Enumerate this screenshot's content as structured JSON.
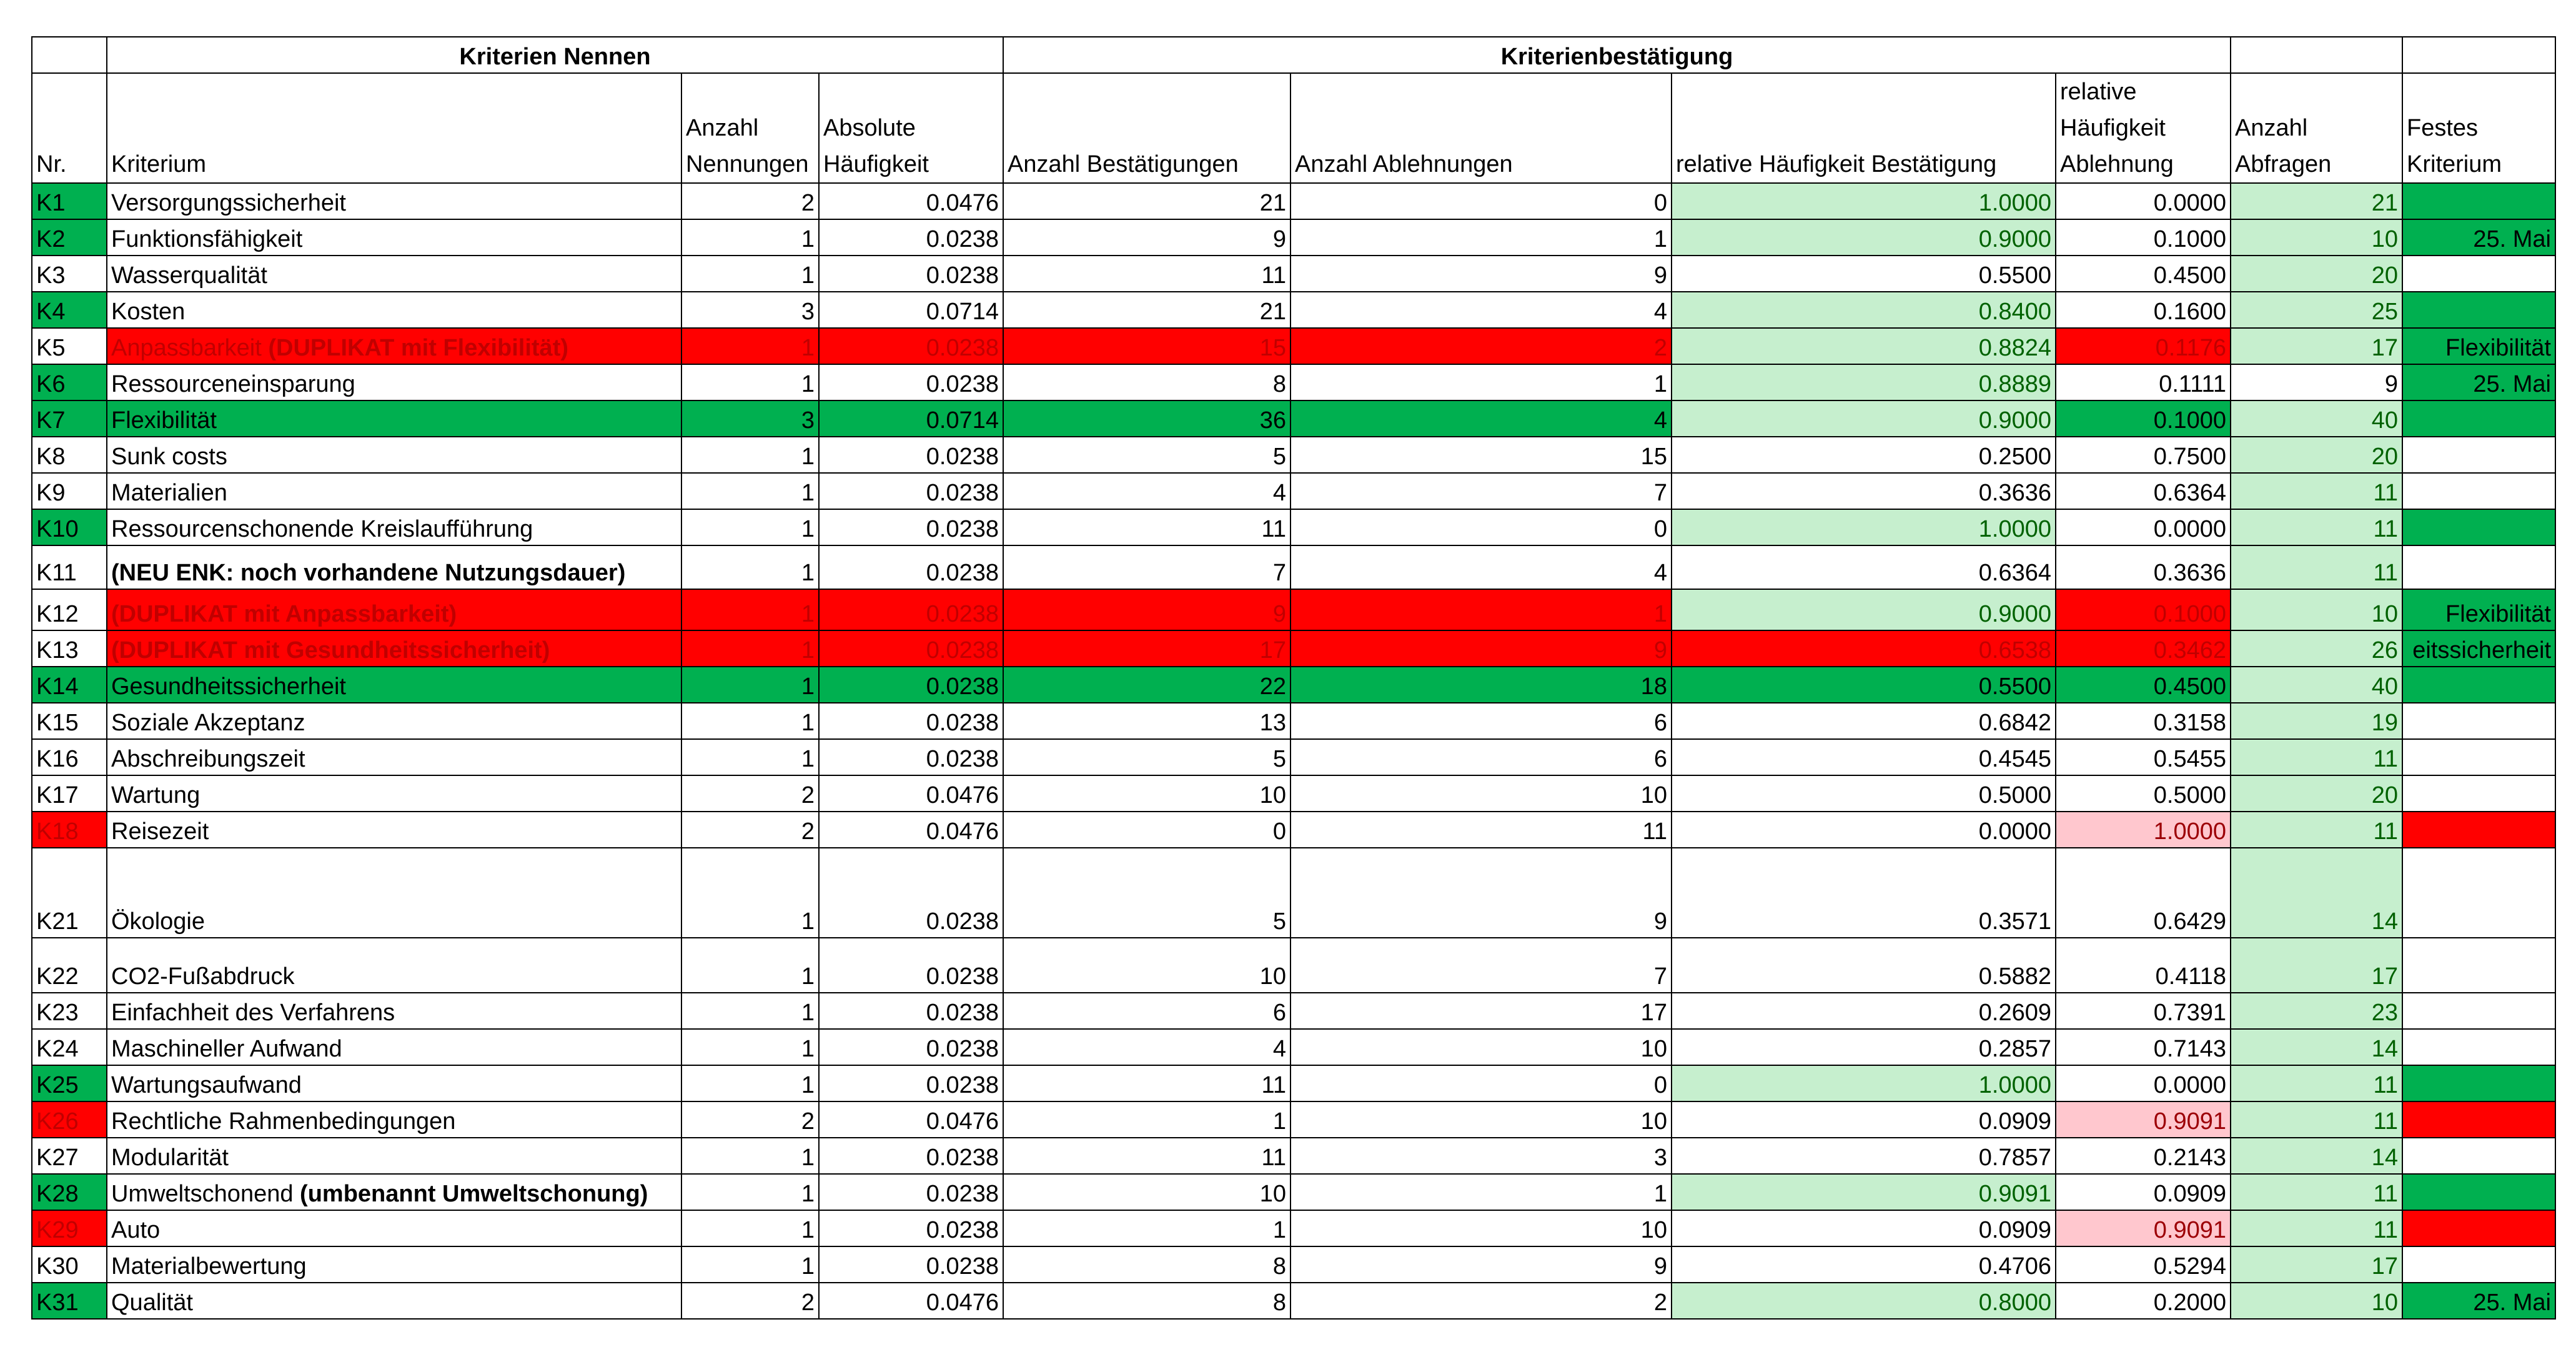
{
  "colors": {
    "green_fill": "#00b050",
    "light_green_fill": "#c6efce",
    "red_fill": "#ff0000",
    "pink_fill": "#ffc7ce",
    "dark_green_text": "#006100",
    "dark_red_text": "#9c0006"
  },
  "group_headers": {
    "nennen": "Kriterien Nennen",
    "bestaetigung": "Kriterienbestätigung"
  },
  "columns": [
    "Nr.",
    "Kriterium",
    "Anzahl Nennungen",
    "Absolute Häufigkeit",
    "Anzahl Bestätigungen",
    "Anzahl Ablehnungen",
    "relative Häufigkeit Bestätigung",
    "relative Häufigkeit Ablehnung",
    "Anzahl Abfragen",
    "Festes Kriterium"
  ],
  "rows": [
    {
      "nr": "K1",
      "name": "Versorgungssicherheit",
      "suffix": "",
      "nennungen": "2",
      "abs": "0.0476",
      "best": "21",
      "abl": "0",
      "rel_best": "1.0000",
      "rel_abl": "0.0000",
      "abfragen": "21",
      "fest": "",
      "fmt": {
        "nr": "g",
        "rel_best": "lg",
        "abfragen": "lg",
        "fest": "g"
      }
    },
    {
      "nr": "K2",
      "name": "Funktionsfähigkeit",
      "suffix": "",
      "nennungen": "1",
      "abs": "0.0238",
      "best": "9",
      "abl": "1",
      "rel_best": "0.9000",
      "rel_abl": "0.1000",
      "abfragen": "10",
      "fest": "25. Mai",
      "fmt": {
        "nr": "g",
        "rel_best": "lg",
        "abfragen": "lg",
        "fest": "g"
      }
    },
    {
      "nr": "K3",
      "name": "Wasserqualität",
      "suffix": "",
      "nennungen": "1",
      "abs": "0.0238",
      "best": "11",
      "abl": "9",
      "rel_best": "0.5500",
      "rel_abl": "0.4500",
      "abfragen": "20",
      "fest": "",
      "fmt": {
        "abfragen": "lg"
      }
    },
    {
      "nr": "K4",
      "name": "Kosten",
      "suffix": "",
      "nennungen": "3",
      "abs": "0.0714",
      "best": "21",
      "abl": "4",
      "rel_best": "0.8400",
      "rel_abl": "0.1600",
      "abfragen": "25",
      "fest": "",
      "fmt": {
        "nr": "g",
        "rel_best": "lg",
        "abfragen": "lg",
        "fest": "g"
      }
    },
    {
      "nr": "K5",
      "name": "Anpassbarkeit ",
      "suffix": "(DUPLIKAT mit Flexibilität)",
      "nennungen": "1",
      "abs": "0.0238",
      "best": "15",
      "abl": "2",
      "rel_best": "0.8824",
      "rel_abl": "0.1176",
      "abfragen": "17",
      "fest": "Flexibilität",
      "fmt": {
        "name": "r",
        "nennungen": "r",
        "abs": "r",
        "best": "r",
        "abl": "r",
        "rel_best": "lg",
        "rel_abl": "r",
        "abfragen": "lg",
        "fest": "g"
      }
    },
    {
      "nr": "K6",
      "name": "Ressourceneinsparung",
      "suffix": "",
      "nennungen": "1",
      "abs": "0.0238",
      "best": "8",
      "abl": "1",
      "rel_best": "0.8889",
      "rel_abl": "0.1111",
      "abfragen": "9",
      "fest": "25. Mai",
      "fmt": {
        "nr": "g",
        "rel_best": "lg",
        "fest": "g"
      }
    },
    {
      "nr": "K7",
      "name": "Flexibilität",
      "suffix": "",
      "nennungen": "3",
      "abs": "0.0714",
      "best": "36",
      "abl": "4",
      "rel_best": "0.9000",
      "rel_abl": "0.1000",
      "abfragen": "40",
      "fest": "",
      "fmt": {
        "nr": "g",
        "name": "g",
        "nennungen": "g",
        "abs": "g",
        "best": "g",
        "abl": "g",
        "rel_best": "lg",
        "rel_abl": "g",
        "abfragen": "lg",
        "fest": "g"
      }
    },
    {
      "nr": "K8",
      "name": "Sunk costs",
      "suffix": "",
      "nennungen": "1",
      "abs": "0.0238",
      "best": "5",
      "abl": "15",
      "rel_best": "0.2500",
      "rel_abl": "0.7500",
      "abfragen": "20",
      "fest": "",
      "fmt": {
        "abfragen": "lg"
      }
    },
    {
      "nr": "K9",
      "name": "Materialien",
      "suffix": "",
      "nennungen": "1",
      "abs": "0.0238",
      "best": "4",
      "abl": "7",
      "rel_best": "0.3636",
      "rel_abl": "0.6364",
      "abfragen": "11",
      "fest": "",
      "fmt": {
        "abfragen": "lg"
      }
    },
    {
      "nr": "K10",
      "name": "Ressourcenschonende Kreislaufführung",
      "suffix": "",
      "nennungen": "1",
      "abs": "0.0238",
      "best": "11",
      "abl": "0",
      "rel_best": "1.0000",
      "rel_abl": "0.0000",
      "abfragen": "11",
      "fest": "",
      "fmt": {
        "nr": "g",
        "rel_best": "lg",
        "abfragen": "lg",
        "fest": "g"
      }
    },
    {
      "nr": "K11",
      "name": "",
      "suffix": "(NEU ENK: noch vorhandene Nutzungsdauer)",
      "nennungen": "1",
      "abs": "0.0238",
      "best": "7",
      "abl": "4",
      "rel_best": "0.6364",
      "rel_abl": "0.3636",
      "abfragen": "11",
      "fest": "",
      "fmt": {
        "abfragen": "lg"
      }
    },
    {
      "nr": "K12",
      "name": "",
      "suffix": "(DUPLIKAT mit Anpassbarkeit)",
      "nennungen": "1",
      "abs": "0.0238",
      "best": "9",
      "abl": "1",
      "rel_best": "0.9000",
      "rel_abl": "0.1000",
      "abfragen": "10",
      "fest": "Flexibilität",
      "fmt": {
        "name": "r",
        "nennungen": "r",
        "abs": "r",
        "best": "r",
        "abl": "r",
        "rel_best": "lg",
        "rel_abl": "r",
        "abfragen": "lg",
        "fest": "g"
      }
    },
    {
      "nr": "K13",
      "name": "",
      "suffix": "(DUPLIKAT mit Gesundheitssicherheit)",
      "nennungen": "1",
      "abs": "0.0238",
      "best": "17",
      "abl": "9",
      "rel_best": "0.6538",
      "rel_abl": "0.3462",
      "abfragen": "26",
      "fest": "eitssicherheit",
      "fmt": {
        "name": "r",
        "nennungen": "r",
        "abs": "r",
        "best": "r",
        "abl": "r",
        "rel_best": "r",
        "rel_abl": "r",
        "abfragen": "lg",
        "fest": "g"
      }
    },
    {
      "nr": "K14",
      "name": "Gesundheitssicherheit",
      "suffix": "",
      "nennungen": "1",
      "abs": "0.0238",
      "best": "22",
      "abl": "18",
      "rel_best": "0.5500",
      "rel_abl": "0.4500",
      "abfragen": "40",
      "fest": "",
      "fmt": {
        "nr": "g",
        "name": "g",
        "nennungen": "g",
        "abs": "g",
        "best": "g",
        "abl": "g",
        "rel_best": "g",
        "rel_abl": "g",
        "abfragen": "lg",
        "fest": "g"
      }
    },
    {
      "nr": "K15",
      "name": "Soziale Akzeptanz",
      "suffix": "",
      "nennungen": "1",
      "abs": "0.0238",
      "best": "13",
      "abl": "6",
      "rel_best": "0.6842",
      "rel_abl": "0.3158",
      "abfragen": "19",
      "fest": "",
      "fmt": {
        "abfragen": "lg"
      }
    },
    {
      "nr": "K16",
      "name": "Abschreibungszeit",
      "suffix": "",
      "nennungen": "1",
      "abs": "0.0238",
      "best": "5",
      "abl": "6",
      "rel_best": "0.4545",
      "rel_abl": "0.5455",
      "abfragen": "11",
      "fest": "",
      "fmt": {
        "abfragen": "lg"
      }
    },
    {
      "nr": "K17",
      "name": "Wartung",
      "suffix": "",
      "nennungen": "2",
      "abs": "0.0476",
      "best": "10",
      "abl": "10",
      "rel_best": "0.5000",
      "rel_abl": "0.5000",
      "abfragen": "20",
      "fest": "",
      "fmt": {
        "abfragen": "lg"
      }
    },
    {
      "nr": "K18",
      "name": "Reisezeit",
      "suffix": "",
      "nennungen": "2",
      "abs": "0.0476",
      "best": "0",
      "abl": "11",
      "rel_best": "0.0000",
      "rel_abl": "1.0000",
      "abfragen": "11",
      "fest": "",
      "fmt": {
        "nr": "r",
        "rel_abl": "p",
        "abfragen": "lg",
        "fest": "r"
      }
    },
    {
      "nr": "K21",
      "name": "Ökologie",
      "suffix": "",
      "nennungen": "1",
      "abs": "0.0238",
      "best": "5",
      "abl": "9",
      "rel_best": "0.3571",
      "rel_abl": "0.6429",
      "abfragen": "14",
      "fest": "",
      "fmt": {
        "abfragen": "lg"
      }
    },
    {
      "nr": "K22",
      "name": "CO2-Fußabdruck",
      "suffix": "",
      "nennungen": "1",
      "abs": "0.0238",
      "best": "10",
      "abl": "7",
      "rel_best": "0.5882",
      "rel_abl": "0.4118",
      "abfragen": "17",
      "fest": "",
      "fmt": {
        "abfragen": "lg"
      }
    },
    {
      "nr": "K23",
      "name": "Einfachheit des Verfahrens",
      "suffix": "",
      "nennungen": "1",
      "abs": "0.0238",
      "best": "6",
      "abl": "17",
      "rel_best": "0.2609",
      "rel_abl": "0.7391",
      "abfragen": "23",
      "fest": "",
      "fmt": {
        "abfragen": "lg"
      }
    },
    {
      "nr": "K24",
      "name": "Maschineller Aufwand",
      "suffix": "",
      "nennungen": "1",
      "abs": "0.0238",
      "best": "4",
      "abl": "10",
      "rel_best": "0.2857",
      "rel_abl": "0.7143",
      "abfragen": "14",
      "fest": "",
      "fmt": {
        "abfragen": "lg"
      }
    },
    {
      "nr": "K25",
      "name": "Wartungsaufwand",
      "suffix": "",
      "nennungen": "1",
      "abs": "0.0238",
      "best": "11",
      "abl": "0",
      "rel_best": "1.0000",
      "rel_abl": "0.0000",
      "abfragen": "11",
      "fest": "",
      "fmt": {
        "nr": "g",
        "rel_best": "lg",
        "abfragen": "lg",
        "fest": "g"
      }
    },
    {
      "nr": "K26",
      "name": "Rechtliche Rahmenbedingungen",
      "suffix": "",
      "nennungen": "2",
      "abs": "0.0476",
      "best": "1",
      "abl": "10",
      "rel_best": "0.0909",
      "rel_abl": "0.9091",
      "abfragen": "11",
      "fest": "",
      "fmt": {
        "nr": "r",
        "rel_abl": "p",
        "abfragen": "lg",
        "fest": "r"
      }
    },
    {
      "nr": "K27",
      "name": "Modularität",
      "suffix": "",
      "nennungen": "1",
      "abs": "0.0238",
      "best": "11",
      "abl": "3",
      "rel_best": "0.7857",
      "rel_abl": "0.2143",
      "abfragen": "14",
      "fest": "",
      "fmt": {
        "abfragen": "lg"
      }
    },
    {
      "nr": "K28",
      "name": "Umweltschonend ",
      "suffix": "(umbenannt Umweltschonung)",
      "nennungen": "1",
      "abs": "0.0238",
      "best": "10",
      "abl": "1",
      "rel_best": "0.9091",
      "rel_abl": "0.0909",
      "abfragen": "11",
      "fest": "",
      "fmt": {
        "nr": "g",
        "rel_best": "lg",
        "abfragen": "lg",
        "fest": "g"
      }
    },
    {
      "nr": "K29",
      "name": "Auto",
      "suffix": "",
      "nennungen": "1",
      "abs": "0.0238",
      "best": "1",
      "abl": "10",
      "rel_best": "0.0909",
      "rel_abl": "0.9091",
      "abfragen": "11",
      "fest": "",
      "fmt": {
        "nr": "r",
        "rel_abl": "p",
        "abfragen": "lg",
        "fest": "r"
      }
    },
    {
      "nr": "K30",
      "name": "Materialbewertung",
      "suffix": "",
      "nennungen": "1",
      "abs": "0.0238",
      "best": "8",
      "abl": "9",
      "rel_best": "0.4706",
      "rel_abl": "0.5294",
      "abfragen": "17",
      "fest": "",
      "fmt": {
        "abfragen": "lg"
      }
    },
    {
      "nr": "K31",
      "name": "Qualität",
      "suffix": "",
      "nennungen": "2",
      "abs": "0.0476",
      "best": "8",
      "abl": "2",
      "rel_best": "0.8000",
      "rel_abl": "0.2000",
      "abfragen": "10",
      "fest": "25. Mai",
      "fmt": {
        "nr": "g",
        "rel_best": "lg",
        "abfragen": "lg",
        "fest": "g"
      }
    }
  ]
}
